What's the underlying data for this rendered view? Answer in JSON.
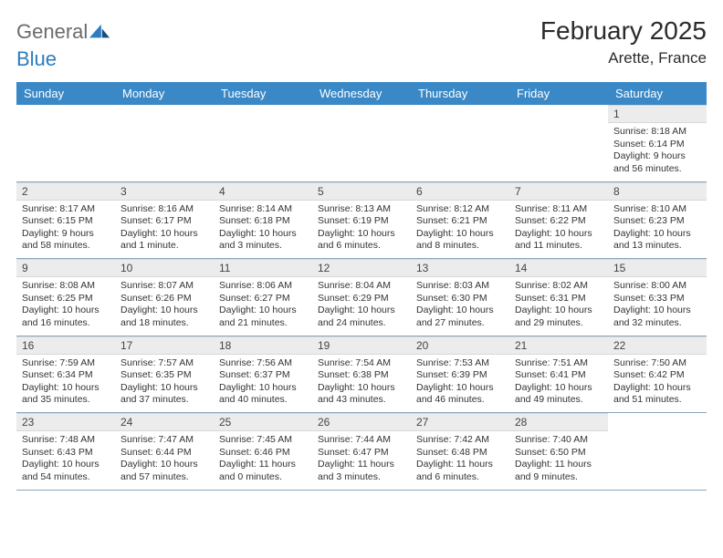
{
  "brand": {
    "name_a": "General",
    "name_b": "Blue"
  },
  "title": "February 2025",
  "location": "Arette, France",
  "weekdays": [
    "Sunday",
    "Monday",
    "Tuesday",
    "Wednesday",
    "Thursday",
    "Friday",
    "Saturday"
  ],
  "colors": {
    "header_bar": "#3a88c6",
    "header_text": "#ffffff",
    "daynum_bg": "#ececec",
    "rule": "#8aa5bb",
    "body_text": "#333333",
    "brand_gray": "#6b6b6b",
    "brand_blue": "#2d7dc0"
  },
  "weeks": [
    [
      {
        "n": "",
        "lines": []
      },
      {
        "n": "",
        "lines": []
      },
      {
        "n": "",
        "lines": []
      },
      {
        "n": "",
        "lines": []
      },
      {
        "n": "",
        "lines": []
      },
      {
        "n": "",
        "lines": []
      },
      {
        "n": "1",
        "lines": [
          "Sunrise: 8:18 AM",
          "Sunset: 6:14 PM",
          "Daylight: 9 hours",
          "and 56 minutes."
        ]
      }
    ],
    [
      {
        "n": "2",
        "lines": [
          "Sunrise: 8:17 AM",
          "Sunset: 6:15 PM",
          "Daylight: 9 hours",
          "and 58 minutes."
        ]
      },
      {
        "n": "3",
        "lines": [
          "Sunrise: 8:16 AM",
          "Sunset: 6:17 PM",
          "Daylight: 10 hours",
          "and 1 minute."
        ]
      },
      {
        "n": "4",
        "lines": [
          "Sunrise: 8:14 AM",
          "Sunset: 6:18 PM",
          "Daylight: 10 hours",
          "and 3 minutes."
        ]
      },
      {
        "n": "5",
        "lines": [
          "Sunrise: 8:13 AM",
          "Sunset: 6:19 PM",
          "Daylight: 10 hours",
          "and 6 minutes."
        ]
      },
      {
        "n": "6",
        "lines": [
          "Sunrise: 8:12 AM",
          "Sunset: 6:21 PM",
          "Daylight: 10 hours",
          "and 8 minutes."
        ]
      },
      {
        "n": "7",
        "lines": [
          "Sunrise: 8:11 AM",
          "Sunset: 6:22 PM",
          "Daylight: 10 hours",
          "and 11 minutes."
        ]
      },
      {
        "n": "8",
        "lines": [
          "Sunrise: 8:10 AM",
          "Sunset: 6:23 PM",
          "Daylight: 10 hours",
          "and 13 minutes."
        ]
      }
    ],
    [
      {
        "n": "9",
        "lines": [
          "Sunrise: 8:08 AM",
          "Sunset: 6:25 PM",
          "Daylight: 10 hours",
          "and 16 minutes."
        ]
      },
      {
        "n": "10",
        "lines": [
          "Sunrise: 8:07 AM",
          "Sunset: 6:26 PM",
          "Daylight: 10 hours",
          "and 18 minutes."
        ]
      },
      {
        "n": "11",
        "lines": [
          "Sunrise: 8:06 AM",
          "Sunset: 6:27 PM",
          "Daylight: 10 hours",
          "and 21 minutes."
        ]
      },
      {
        "n": "12",
        "lines": [
          "Sunrise: 8:04 AM",
          "Sunset: 6:29 PM",
          "Daylight: 10 hours",
          "and 24 minutes."
        ]
      },
      {
        "n": "13",
        "lines": [
          "Sunrise: 8:03 AM",
          "Sunset: 6:30 PM",
          "Daylight: 10 hours",
          "and 27 minutes."
        ]
      },
      {
        "n": "14",
        "lines": [
          "Sunrise: 8:02 AM",
          "Sunset: 6:31 PM",
          "Daylight: 10 hours",
          "and 29 minutes."
        ]
      },
      {
        "n": "15",
        "lines": [
          "Sunrise: 8:00 AM",
          "Sunset: 6:33 PM",
          "Daylight: 10 hours",
          "and 32 minutes."
        ]
      }
    ],
    [
      {
        "n": "16",
        "lines": [
          "Sunrise: 7:59 AM",
          "Sunset: 6:34 PM",
          "Daylight: 10 hours",
          "and 35 minutes."
        ]
      },
      {
        "n": "17",
        "lines": [
          "Sunrise: 7:57 AM",
          "Sunset: 6:35 PM",
          "Daylight: 10 hours",
          "and 37 minutes."
        ]
      },
      {
        "n": "18",
        "lines": [
          "Sunrise: 7:56 AM",
          "Sunset: 6:37 PM",
          "Daylight: 10 hours",
          "and 40 minutes."
        ]
      },
      {
        "n": "19",
        "lines": [
          "Sunrise: 7:54 AM",
          "Sunset: 6:38 PM",
          "Daylight: 10 hours",
          "and 43 minutes."
        ]
      },
      {
        "n": "20",
        "lines": [
          "Sunrise: 7:53 AM",
          "Sunset: 6:39 PM",
          "Daylight: 10 hours",
          "and 46 minutes."
        ]
      },
      {
        "n": "21",
        "lines": [
          "Sunrise: 7:51 AM",
          "Sunset: 6:41 PM",
          "Daylight: 10 hours",
          "and 49 minutes."
        ]
      },
      {
        "n": "22",
        "lines": [
          "Sunrise: 7:50 AM",
          "Sunset: 6:42 PM",
          "Daylight: 10 hours",
          "and 51 minutes."
        ]
      }
    ],
    [
      {
        "n": "23",
        "lines": [
          "Sunrise: 7:48 AM",
          "Sunset: 6:43 PM",
          "Daylight: 10 hours",
          "and 54 minutes."
        ]
      },
      {
        "n": "24",
        "lines": [
          "Sunrise: 7:47 AM",
          "Sunset: 6:44 PM",
          "Daylight: 10 hours",
          "and 57 minutes."
        ]
      },
      {
        "n": "25",
        "lines": [
          "Sunrise: 7:45 AM",
          "Sunset: 6:46 PM",
          "Daylight: 11 hours",
          "and 0 minutes."
        ]
      },
      {
        "n": "26",
        "lines": [
          "Sunrise: 7:44 AM",
          "Sunset: 6:47 PM",
          "Daylight: 11 hours",
          "and 3 minutes."
        ]
      },
      {
        "n": "27",
        "lines": [
          "Sunrise: 7:42 AM",
          "Sunset: 6:48 PM",
          "Daylight: 11 hours",
          "and 6 minutes."
        ]
      },
      {
        "n": "28",
        "lines": [
          "Sunrise: 7:40 AM",
          "Sunset: 6:50 PM",
          "Daylight: 11 hours",
          "and 9 minutes."
        ]
      },
      {
        "n": "",
        "lines": []
      }
    ]
  ]
}
